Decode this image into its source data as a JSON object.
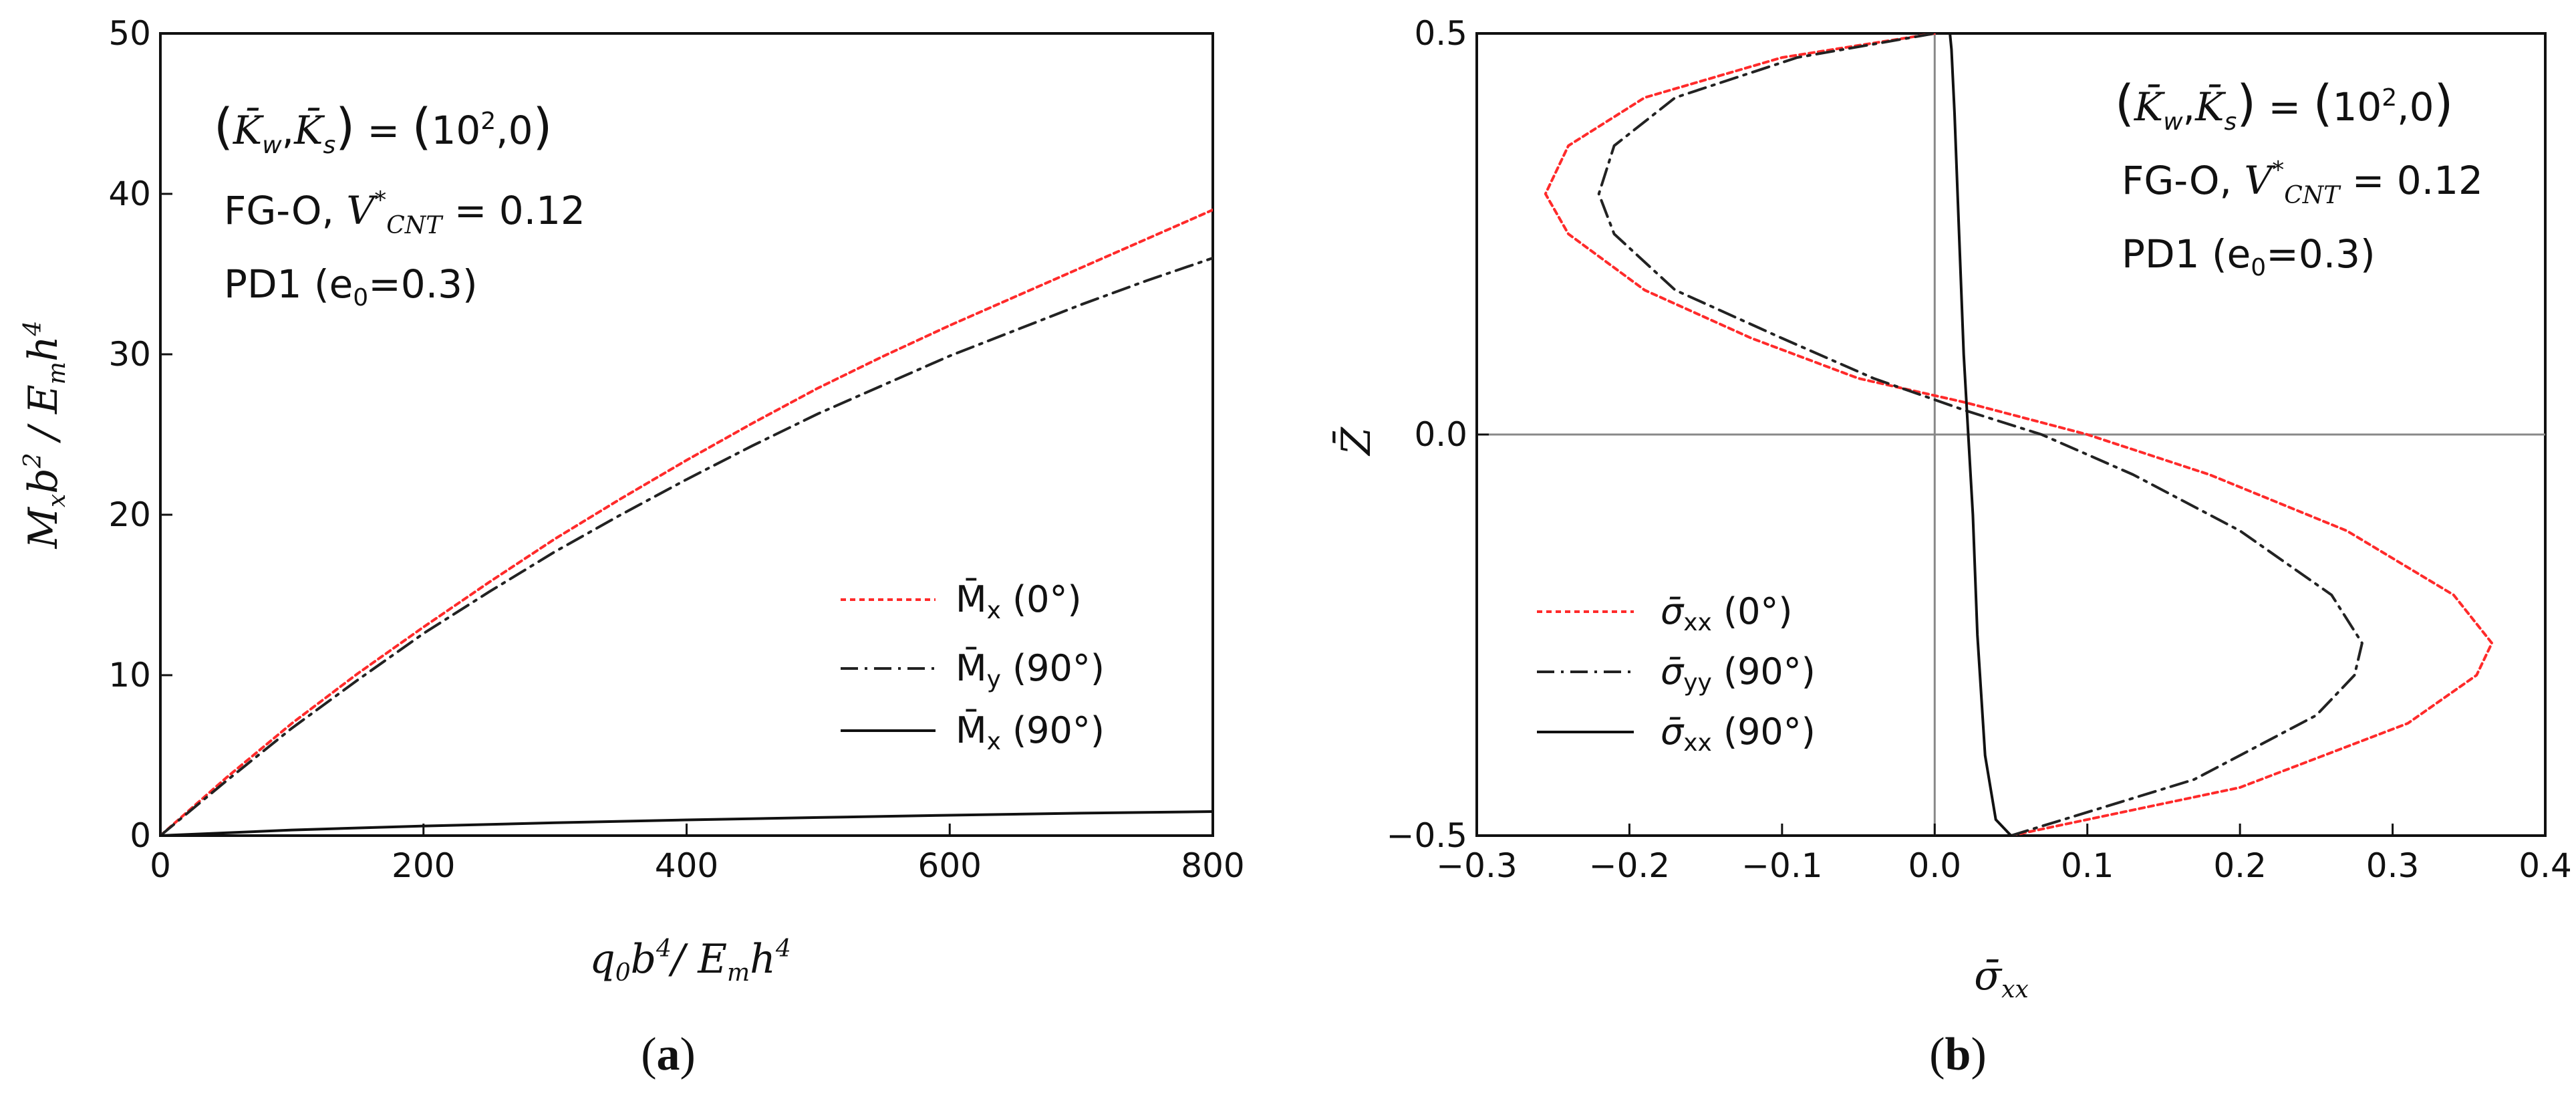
{
  "chart_data": [
    {
      "type": "line",
      "panel": "(a)",
      "caption": {
        "open": "(",
        "letter": "a",
        "close": ")"
      },
      "xlabel": "q₀b⁴/ Eₘh⁴",
      "ylabel": "Mₓb² / Eₘh⁴",
      "xlim": [
        0,
        800
      ],
      "ylim": [
        0,
        50
      ],
      "xticks": [
        "0",
        "200",
        "400",
        "600",
        "800"
      ],
      "yticks": [
        "0",
        "10",
        "20",
        "30",
        "40",
        "50"
      ],
      "annotations": [
        "(K̄w,K̄s)=(10²,0)",
        "FG-O, V*CNT = 0.12",
        "PD1 (e₀=0.3)"
      ],
      "legend_position": "lower-right",
      "series": [
        {
          "name": "M̄x (0°)",
          "color": "#ff2a2a",
          "style": "dotted",
          "x": [
            0,
            50,
            100,
            150,
            200,
            250,
            300,
            350,
            400,
            450,
            500,
            550,
            600,
            650,
            700,
            750,
            800
          ],
          "y": [
            0,
            3.6,
            7.0,
            10.1,
            13.0,
            15.8,
            18.5,
            21.0,
            23.4,
            25.7,
            27.9,
            29.9,
            31.8,
            33.6,
            35.4,
            37.2,
            39.0
          ]
        },
        {
          "name": "M̄y (90°)",
          "color": "#222222",
          "style": "dashdot",
          "x": [
            0,
            50,
            100,
            150,
            200,
            250,
            300,
            350,
            400,
            450,
            500,
            550,
            600,
            650,
            700,
            750,
            800
          ],
          "y": [
            0,
            3.4,
            6.7,
            9.7,
            12.6,
            15.2,
            17.7,
            20.0,
            22.2,
            24.3,
            26.3,
            28.1,
            29.9,
            31.5,
            33.1,
            34.6,
            36.0
          ]
        },
        {
          "name": "M̄x (90°)",
          "color": "#111111",
          "style": "solid",
          "x": [
            0,
            100,
            200,
            300,
            400,
            500,
            600,
            700,
            800
          ],
          "y": [
            0,
            0.35,
            0.6,
            0.8,
            0.98,
            1.13,
            1.27,
            1.4,
            1.5
          ]
        }
      ]
    },
    {
      "type": "line",
      "panel": "(b)",
      "caption": {
        "open": "(",
        "letter": "b",
        "close": ")"
      },
      "xlabel": "σ̄xx",
      "ylabel": "Z̄",
      "xlim": [
        -0.3,
        0.4
      ],
      "ylim": [
        -0.5,
        0.5
      ],
      "xticks": [
        "−0.3",
        "−0.2",
        "−0.1",
        "0.0",
        "0.1",
        "0.2",
        "0.3",
        "0.4"
      ],
      "yticks": [
        "−0.5",
        "0.0",
        "0.5"
      ],
      "annotations": [
        "(K̄w,K̄s)=(10²,0)",
        "FG-O, V*CNT = 0.12",
        "PD1 (e₀=0.3)"
      ],
      "legend_position": "lower-left",
      "series": [
        {
          "name": "σ̄xx (0°)",
          "color": "#ff2a2a",
          "style": "dotted",
          "x": [
            0.05,
            0.2,
            0.31,
            0.355,
            0.365,
            0.34,
            0.27,
            0.18,
            0.1,
            0.02,
            -0.05,
            -0.12,
            -0.19,
            -0.24,
            -0.255,
            -0.24,
            -0.19,
            -0.1,
            0.0
          ],
          "y": [
            -0.5,
            -0.44,
            -0.36,
            -0.3,
            -0.26,
            -0.2,
            -0.12,
            -0.05,
            0.0,
            0.04,
            0.07,
            0.12,
            0.18,
            0.25,
            0.3,
            0.36,
            0.42,
            0.47,
            0.5
          ]
        },
        {
          "name": "σ̄yy (90°)",
          "color": "#222222",
          "style": "dashdot",
          "x": [
            0.05,
            0.17,
            0.25,
            0.275,
            0.28,
            0.26,
            0.2,
            0.13,
            0.07,
            0.02,
            -0.04,
            -0.1,
            -0.17,
            -0.21,
            -0.22,
            -0.21,
            -0.17,
            -0.09,
            0.0
          ],
          "y": [
            -0.5,
            -0.43,
            -0.35,
            -0.3,
            -0.26,
            -0.2,
            -0.12,
            -0.05,
            0.0,
            0.03,
            0.07,
            0.12,
            0.18,
            0.25,
            0.3,
            0.36,
            0.42,
            0.47,
            0.5
          ]
        },
        {
          "name": "σ̄xx (90°)",
          "color": "#111111",
          "style": "solid",
          "x": [
            0.05,
            0.04,
            0.033,
            0.028,
            0.025,
            0.022,
            0.019,
            0.016,
            0.013,
            0.011,
            0.01
          ],
          "y": [
            -0.5,
            -0.48,
            -0.4,
            -0.25,
            -0.1,
            0.0,
            0.1,
            0.25,
            0.4,
            0.48,
            0.5
          ]
        }
      ]
    }
  ]
}
